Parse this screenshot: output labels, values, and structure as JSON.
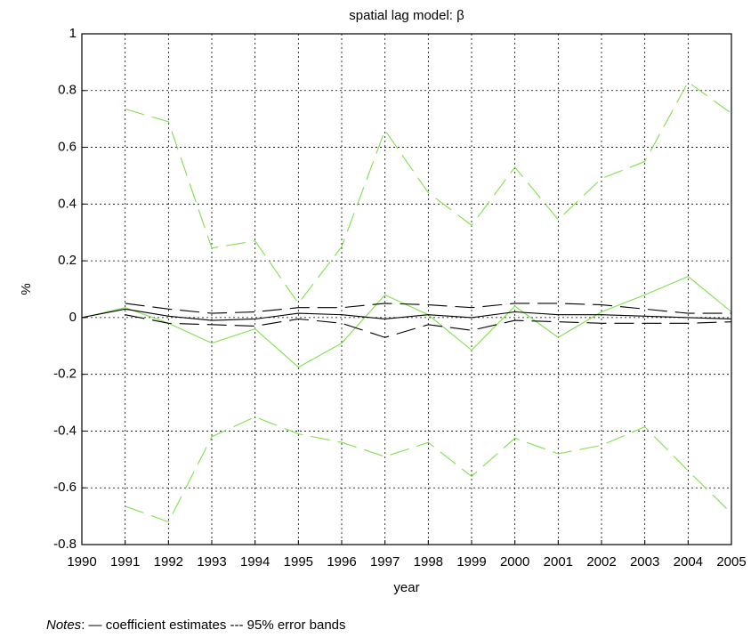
{
  "chart_data": {
    "type": "line",
    "title": "spatial lag model: β",
    "x_label": "year",
    "y_label": "%",
    "x": [
      1990,
      1991,
      1992,
      1993,
      1994,
      1995,
      1996,
      1997,
      1998,
      1999,
      2000,
      2001,
      2002,
      2003,
      2004,
      2005
    ],
    "series": [
      {
        "color": "#7fe04a",
        "dash": false,
        "values": [
          0,
          0.035,
          -0.02,
          -0.09,
          -0.04,
          -0.175,
          -0.09,
          0.08,
          0.01,
          -0.115,
          0.04,
          -0.07,
          0.02,
          0.08,
          0.145,
          0.02
        ]
      },
      {
        "color": "#7fe04a",
        "dash": true,
        "values": [
          null,
          0.735,
          0.69,
          0.245,
          0.27,
          0.05,
          0.25,
          0.66,
          0.44,
          0.325,
          0.53,
          0.345,
          0.49,
          0.55,
          0.83,
          0.72
        ]
      },
      {
        "color": "#7fe04a",
        "dash": true,
        "values": [
          null,
          -0.665,
          -0.72,
          -0.42,
          -0.35,
          -0.41,
          -0.44,
          -0.49,
          -0.44,
          -0.56,
          -0.425,
          -0.48,
          -0.45,
          -0.385,
          -0.54,
          -0.69
        ]
      },
      {
        "color": "#000000",
        "dash": false,
        "values": [
          0,
          0.03,
          0.005,
          -0.01,
          -0.005,
          0.015,
          0.01,
          -0.005,
          0.01,
          0,
          0.02,
          0.01,
          0.01,
          0.005,
          0,
          -0.005
        ]
      },
      {
        "color": "#000000",
        "dash": true,
        "values": [
          null,
          0.05,
          0.03,
          0.015,
          0.02,
          0.035,
          0.035,
          0.05,
          0.045,
          0.035,
          0.05,
          0.05,
          0.045,
          0.03,
          0.015,
          0.015
        ]
      },
      {
        "color": "#000000",
        "dash": true,
        "values": [
          null,
          0.01,
          -0.02,
          -0.025,
          -0.03,
          -0.005,
          -0.02,
          -0.07,
          -0.025,
          -0.045,
          -0.01,
          -0.015,
          -0.02,
          -0.02,
          -0.02,
          -0.015
        ]
      }
    ],
    "xlim": [
      1990,
      2005
    ],
    "xticks": [
      1990,
      1991,
      1992,
      1993,
      1994,
      1995,
      1996,
      1997,
      1998,
      1999,
      2000,
      2001,
      2002,
      2003,
      2004,
      2005
    ],
    "ylim": [
      -0.8,
      1
    ],
    "yticks": [
      -0.8,
      -0.6,
      -0.4,
      -0.2,
      0,
      0.2,
      0.4,
      0.6,
      0.8,
      1
    ],
    "grid": true,
    "notes_label": "Notes",
    "notes_text": ": — coefficient estimates --- 95% error bands"
  }
}
